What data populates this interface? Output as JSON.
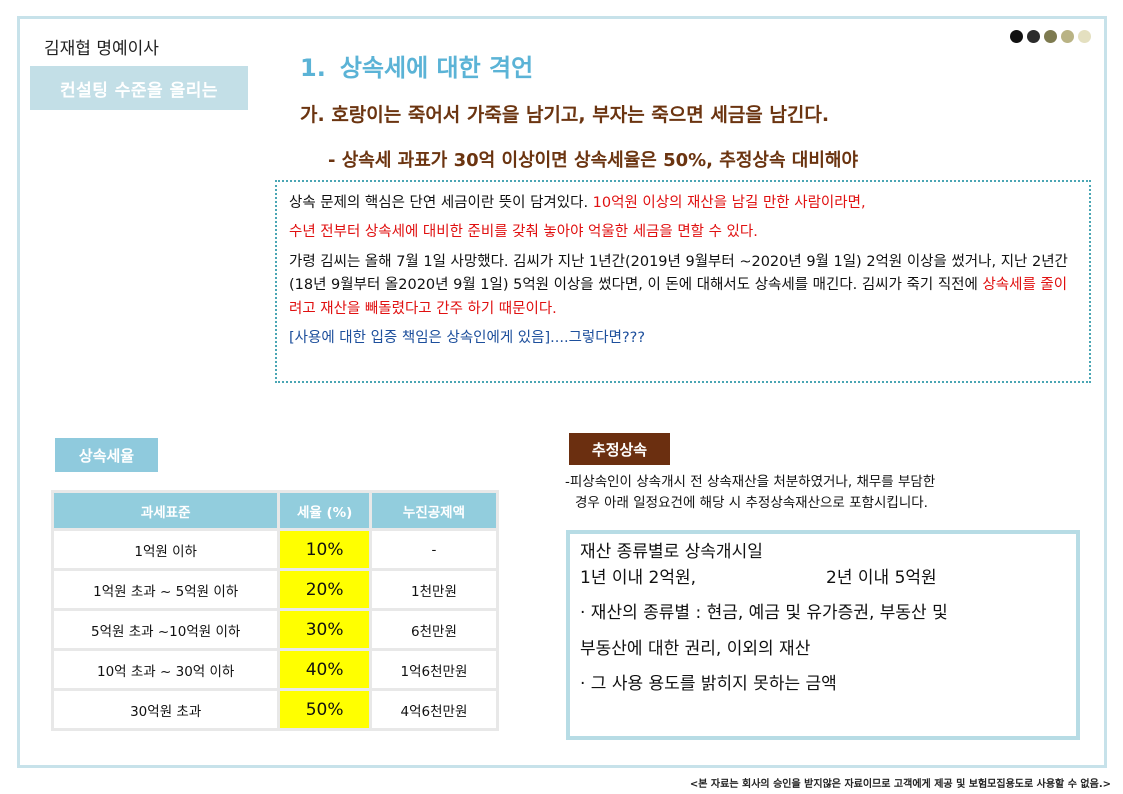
{
  "header": {
    "author": "김재협 명예이사",
    "tag": "컨설팅 수준을 올리는",
    "dot_colors": [
      "#111111",
      "#2b2b2b",
      "#7d7a4f",
      "#b9b384",
      "#e4e0c0"
    ]
  },
  "section": {
    "number": "1.",
    "title": "상속세에 대한 격언",
    "subtitle1": "가. 호랑이는 죽어서 가죽을 남기고, 부자는 죽으면 세금을 남긴다.",
    "subtitle2": "- 상속세 과표가 30억 이상이면 상속세율은 50%, 추정상속 대비해야"
  },
  "note": {
    "p1_a": "상속 문제의 핵심은 단연 세금이란 뜻이 담겨있다. ",
    "p1_b": "10억원 이상의 재산을 남길 만한 사람이라면,",
    "p2": "수년 전부터 상속세에 대비한 준비를 갖춰 놓아야 억울한 세금을 면할 수 있다.",
    "p3_a": "가령 김씨는 올해 7월 1일 사망했다. 김씨가 지난 1년간(2019년 9월부터 ~2020년 9월 1일) 2억원 이상을 썼거나, 지난 2년간(18년 9월부터 올2020년 9월 1일) 5억원 이상을 썼다면, 이 돈에 대해서도 상속세를 매긴다. 김씨가 죽기 직전에 ",
    "p3_b": "상속세를 줄이려고 재산을 빼돌렸다고 간주 하기 때문이다.",
    "p4_a": "[사용에 대한 입증 책임은 상속인에게 있음]",
    "p4_b": "....그렇다면",
    "p4_c": "???"
  },
  "rates": {
    "tag": "상속세율",
    "headers": [
      "과세표준",
      "세율 (%)",
      "누진공제액"
    ],
    "rows": [
      {
        "base": "1억원 이하",
        "rate": "10%",
        "deduction": "-"
      },
      {
        "base": "1억원 초과 ~ 5억원 이하",
        "rate": "20%",
        "deduction": "1천만원"
      },
      {
        "base": "5억원 초과 ~10억원 이하",
        "rate": "30%",
        "deduction": "6천만원"
      },
      {
        "base": "10억 초과 ~ 30억 이하",
        "rate": "40%",
        "deduction": "1억6천만원"
      },
      {
        "base": "30억원 초과",
        "rate": "50%",
        "deduction": "4억6천만원"
      }
    ]
  },
  "deemed": {
    "tag": "추정상속",
    "desc1": "-피상속인이 상속개시 전 상속재산을 처분하였거나, 채무를 부담한",
    "desc2": "경우 아래 일정요건에 해당 시 추정상속재산으로 포함시킵니다.",
    "box_line1": "재산 종류별로 상속개시일",
    "box_line2a": "1년 이내 2억원,",
    "box_line2b": "2년 이내 5억원",
    "box_line3": "· 재산의 종류별 : 현금, 예금 및 유가증권,   부동산 및",
    "box_line4": " 부동산에 대한 권리, 이외의 재산",
    "box_line5": "· 그 사용 용도를 밝히지 못하는 금액"
  },
  "footer": "<본 자료는 회사의 승인을 받지않은 자료이므로 고객에게 제공 및 보험모집용도로 사용할 수 없음.>"
}
